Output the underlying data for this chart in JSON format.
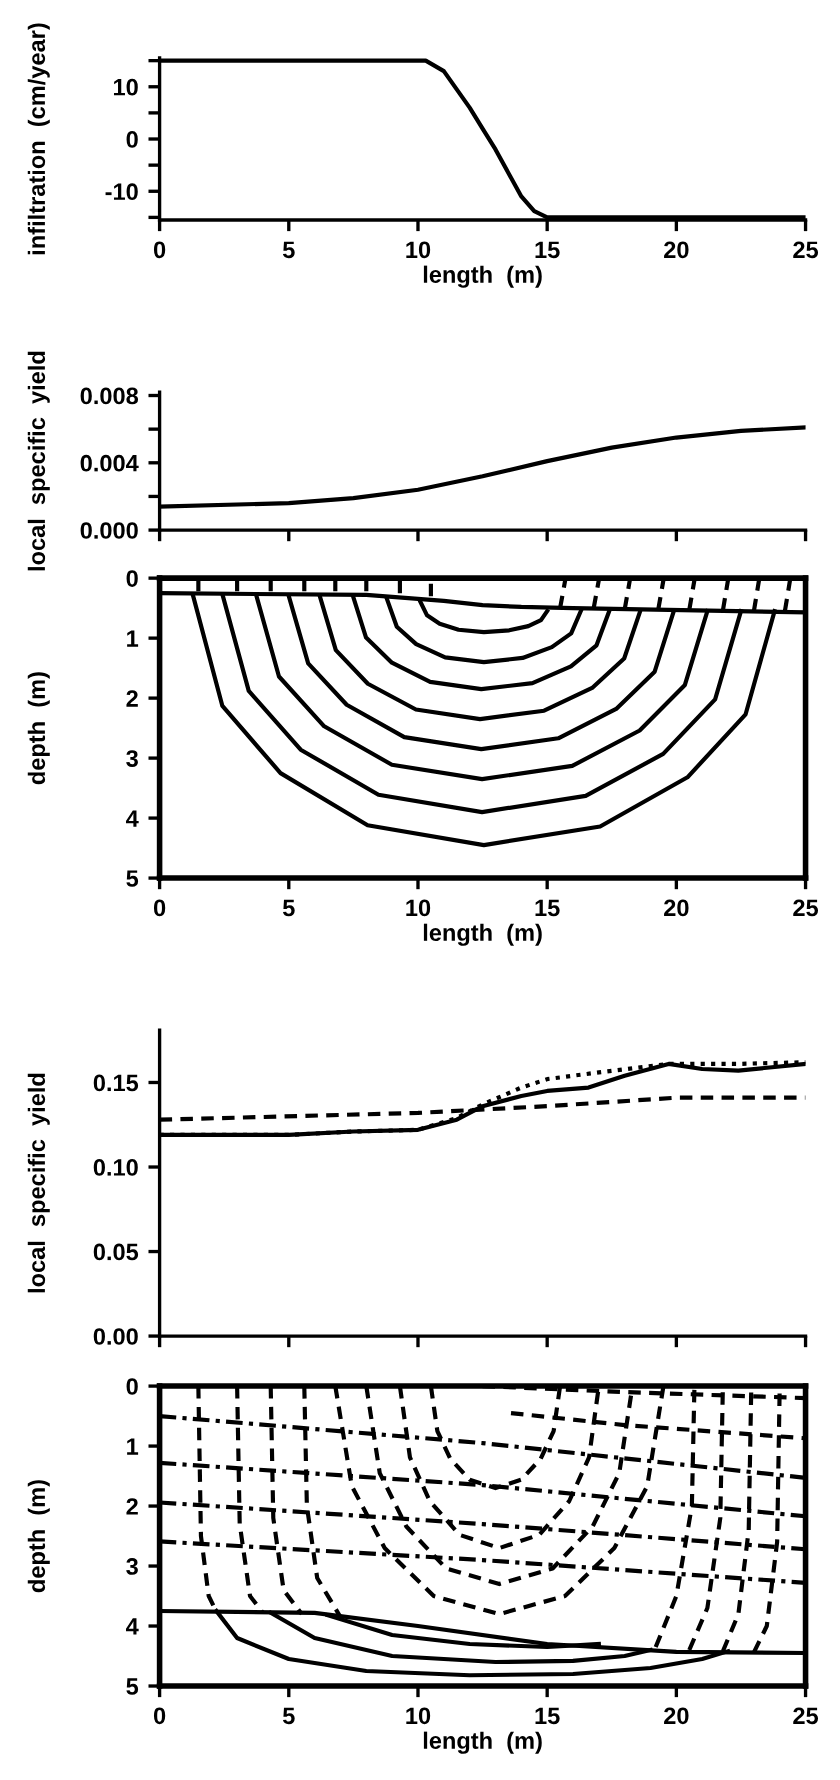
{
  "chart_data": [
    {
      "type": "line",
      "xlabel": "length  (m)",
      "ylabel": "infiltration  (cm/year)",
      "xlim": [
        0,
        25
      ],
      "xticks": [
        0,
        5,
        10,
        15,
        20,
        25
      ],
      "ylim": [
        -15.5,
        15.5
      ],
      "yticks": [
        {
          "value": -15,
          "label": null
        },
        -10,
        {
          "value": -5,
          "label": null
        },
        0,
        {
          "value": 5,
          "label": null
        },
        10,
        {
          "value": 15,
          "label": null
        }
      ],
      "series": [
        {
          "color": "#000000",
          "line_style": "solid",
          "x": [
            0,
            10.3,
            11,
            12,
            12.5,
            13,
            14,
            14.5,
            15,
            25
          ],
          "values": [
            15,
            15,
            13,
            6,
            2,
            -2,
            -11,
            -13.8,
            -15,
            -15
          ]
        }
      ]
    },
    {
      "type": "line",
      "ylabel": "local  specific  yield",
      "tick_labels": "y",
      "xlim": [
        0,
        25
      ],
      "xticks": [
        0,
        5,
        10,
        15,
        20,
        25
      ],
      "ylim": [
        0,
        0.0082
      ],
      "yticks": [
        {
          "value": 0,
          "label": "0.000"
        },
        {
          "value": 0.002,
          "label": null
        },
        {
          "value": 0.004,
          "label": "0.004"
        },
        {
          "value": 0.006,
          "label": null
        },
        {
          "value": 0.008,
          "label": "0.008"
        }
      ],
      "series": [
        {
          "color": "#000000",
          "line_style": "solid",
          "x": [
            0,
            5,
            7.5,
            10,
            12.5,
            15,
            17.5,
            20,
            22.5,
            25
          ],
          "values": [
            0.0014,
            0.0016,
            0.0019,
            0.0024,
            0.0032,
            0.0041,
            0.0049,
            0.0055,
            0.0059,
            0.0061
          ]
        }
      ]
    },
    {
      "type": "line",
      "xlabel": "length  (m)",
      "ylabel": "depth  (m)",
      "xlim": [
        0,
        25
      ],
      "xticks": [
        0,
        5,
        10,
        15,
        20,
        25
      ],
      "ylim": [
        5,
        0
      ],
      "yticks": [
        0,
        1,
        2,
        3,
        4,
        5
      ],
      "series": [
        {
          "color": "#000000",
          "line_style": "solid",
          "x": [
            0,
            8,
            11,
            12.5,
            14,
            16,
            25
          ],
          "values": [
            0.25,
            0.28,
            0.38,
            0.45,
            0.48,
            0.5,
            0.57
          ]
        },
        {
          "color": "#000000",
          "line_style": "solid",
          "x": [
            1.3,
            2.43,
            4.68,
            8.05,
            12.55,
            17.05,
            20.43,
            22.68,
            23.8
          ],
          "values": [
            0.3,
            2.13,
            3.25,
            4.12,
            4.45,
            4.14,
            3.32,
            2.27,
            0.55
          ]
        },
        {
          "color": "#000000",
          "line_style": "solid",
          "x": [
            2.45,
            3.45,
            5.46,
            8.47,
            12.48,
            16.49,
            19.49,
            21.5,
            22.5
          ],
          "values": [
            0.3,
            1.88,
            2.86,
            3.61,
            3.9,
            3.63,
            2.93,
            2.02,
            0.55
          ]
        },
        {
          "color": "#000000",
          "line_style": "solid",
          "x": [
            3.75,
            4.62,
            6.37,
            8.99,
            12.48,
            15.97,
            18.58,
            20.33,
            21.2
          ],
          "values": [
            0.3,
            1.64,
            2.47,
            3.11,
            3.35,
            3.13,
            2.54,
            1.78,
            0.55
          ]
        },
        {
          "color": "#000000",
          "line_style": "solid",
          "x": [
            5.0,
            5.75,
            7.24,
            9.47,
            12.45,
            15.43,
            17.67,
            19.16,
            19.9
          ],
          "values": [
            0.3,
            1.42,
            2.11,
            2.65,
            2.85,
            2.67,
            2.18,
            1.56,
            0.55
          ]
        },
        {
          "color": "#000000",
          "line_style": "solid",
          "x": [
            6.2,
            6.82,
            8.06,
            9.92,
            12.4,
            14.88,
            16.74,
            17.98,
            18.6
          ],
          "values": [
            0.3,
            1.2,
            1.76,
            2.19,
            2.35,
            2.21,
            1.83,
            1.34,
            0.55
          ]
        },
        {
          "color": "#000000",
          "line_style": "solid",
          "x": [
            7.5,
            7.99,
            8.99,
            10.47,
            12.45,
            14.43,
            15.92,
            16.91,
            17.4
          ],
          "values": [
            0.32,
            0.99,
            1.41,
            1.73,
            1.85,
            1.75,
            1.47,
            1.12,
            0.55
          ]
        },
        {
          "color": "#000000",
          "line_style": "solid",
          "x": [
            8.8,
            9.18,
            9.93,
            11.05,
            12.55,
            14.05,
            15.18,
            15.93,
            16.3
          ],
          "values": [
            0.35,
            0.81,
            1.1,
            1.32,
            1.4,
            1.33,
            1.15,
            0.92,
            0.55
          ]
        },
        {
          "color": "#000000",
          "line_style": "solid",
          "x": [
            10.1,
            10.35,
            10.84,
            11.57,
            12.55,
            13.53,
            14.27,
            14.76,
            15.0
          ],
          "values": [
            0.4,
            0.62,
            0.76,
            0.86,
            0.9,
            0.87,
            0.8,
            0.7,
            0.55
          ]
        },
        {
          "color": "#000000",
          "line_style": "dashed",
          "x": [
            1.5,
            1.5
          ],
          "values": [
            0.22,
            0.03
          ]
        },
        {
          "color": "#000000",
          "line_style": "dashed",
          "x": [
            3.0,
            3.0
          ],
          "values": [
            0.22,
            0.03
          ]
        },
        {
          "color": "#000000",
          "line_style": "dashed",
          "x": [
            4.3,
            4.3
          ],
          "values": [
            0.22,
            0.03
          ]
        },
        {
          "color": "#000000",
          "line_style": "dashed",
          "x": [
            5.6,
            5.6
          ],
          "values": [
            0.22,
            0.03
          ]
        },
        {
          "color": "#000000",
          "line_style": "dashed",
          "x": [
            6.8,
            6.8
          ],
          "values": [
            0.22,
            0.03
          ]
        },
        {
          "color": "#000000",
          "line_style": "dashed",
          "x": [
            8.0,
            8.0
          ],
          "values": [
            0.22,
            0.03
          ]
        },
        {
          "color": "#000000",
          "line_style": "dashed",
          "x": [
            9.3,
            9.3
          ],
          "values": [
            0.25,
            0.03
          ]
        },
        {
          "color": "#000000",
          "line_style": "dashed",
          "x": [
            10.5,
            10.5
          ],
          "values": [
            0.3,
            0.03
          ]
        },
        {
          "color": "#000000",
          "line_style": "dashed",
          "x": [
            15.5,
            15.7
          ],
          "values": [
            0.5,
            0.03
          ]
        },
        {
          "color": "#000000",
          "line_style": "dashed",
          "x": [
            16.8,
            17.0
          ],
          "values": [
            0.5,
            0.03
          ]
        },
        {
          "color": "#000000",
          "line_style": "dashed",
          "x": [
            18.0,
            18.2
          ],
          "values": [
            0.52,
            0.03
          ]
        },
        {
          "color": "#000000",
          "line_style": "dashed",
          "x": [
            19.3,
            19.5
          ],
          "values": [
            0.52,
            0.03
          ]
        },
        {
          "color": "#000000",
          "line_style": "dashed",
          "x": [
            20.5,
            20.7
          ],
          "values": [
            0.53,
            0.03
          ]
        },
        {
          "color": "#000000",
          "line_style": "dashed",
          "x": [
            21.8,
            22.0
          ],
          "values": [
            0.54,
            0.03
          ]
        },
        {
          "color": "#000000",
          "line_style": "dashed",
          "x": [
            23.0,
            23.2
          ],
          "values": [
            0.55,
            0.03
          ]
        },
        {
          "color": "#000000",
          "line_style": "dashed",
          "x": [
            24.2,
            24.4
          ],
          "values": [
            0.55,
            0.03
          ]
        }
      ]
    },
    {
      "type": "line",
      "ylabel": "local  specific  yield",
      "tick_labels": "y",
      "xlim": [
        0,
        25
      ],
      "xticks": [
        0,
        5,
        10,
        15,
        20,
        25
      ],
      "ylim": [
        0,
        0.181
      ],
      "yticks": [
        {
          "value": 0,
          "label": "0.00"
        },
        {
          "value": 0.05,
          "label": "0.05"
        },
        {
          "value": 0.1,
          "label": "0.10"
        },
        {
          "value": 0.15,
          "label": "0.15"
        }
      ],
      "series": [
        {
          "color": "#000000",
          "line_style": "solid",
          "x": [
            0,
            5,
            7.5,
            10,
            11.5,
            12.5,
            14,
            15,
            16.6,
            18,
            19.7,
            21,
            22.4,
            25
          ],
          "values": [
            0.119,
            0.119,
            0.121,
            0.122,
            0.128,
            0.136,
            0.142,
            0.145,
            0.147,
            0.154,
            0.161,
            0.158,
            0.157,
            0.161
          ]
        },
        {
          "color": "#000000",
          "line_style": "dotted",
          "x": [
            0,
            5,
            7.5,
            10,
            11.5,
            12.5,
            14,
            15,
            17,
            19.7,
            22.4,
            25
          ],
          "values": [
            0.119,
            0.119,
            0.121,
            0.122,
            0.129,
            0.137,
            0.147,
            0.152,
            0.156,
            0.161,
            0.161,
            0.162
          ]
        },
        {
          "color": "#000000",
          "line_style": "dashed",
          "x": [
            0,
            10,
            15,
            20,
            25
          ],
          "values": [
            0.128,
            0.132,
            0.136,
            0.141,
            0.141
          ]
        }
      ]
    },
    {
      "type": "line",
      "xlabel": "length  (m)",
      "ylabel": "depth  (m)",
      "xlim": [
        0,
        25
      ],
      "xticks": [
        0,
        5,
        10,
        15,
        20,
        25
      ],
      "ylim": [
        5,
        0
      ],
      "yticks": [
        0,
        1,
        2,
        3,
        4,
        5
      ],
      "series": [
        {
          "color": "#000000",
          "line_style": "dashed",
          "x": [
            10.5,
            10.75,
            11.25,
            12.0,
            13.0,
            14.0,
            14.75,
            15.25,
            15.5
          ],
          "values": [
            0,
            0.75,
            1.21,
            1.56,
            1.7,
            1.56,
            1.21,
            0.75,
            0
          ]
        },
        {
          "color": "#000000",
          "line_style": "dashed",
          "x": [
            9.3,
            9.69,
            10.46,
            11.61,
            13.15,
            14.69,
            15.85,
            16.62,
            17.0
          ],
          "values": [
            0,
            1.19,
            1.92,
            2.48,
            2.7,
            2.48,
            1.92,
            1.19,
            0
          ]
        },
        {
          "color": "#000000",
          "line_style": "dashed",
          "x": [
            8.0,
            8.52,
            9.55,
            11.09,
            13.15,
            15.21,
            16.76,
            17.79,
            18.3
          ],
          "values": [
            0,
            1.45,
            2.34,
            3.04,
            3.3,
            3.04,
            2.34,
            1.45,
            0
          ]
        },
        {
          "color": "#000000",
          "line_style": "dashed",
          "x": [
            6.8,
            7.44,
            8.71,
            10.61,
            13.15,
            15.69,
            17.6,
            18.87,
            19.5
          ],
          "values": [
            0,
            1.67,
            2.7,
            3.5,
            3.8,
            3.5,
            2.7,
            1.67,
            0
          ]
        },
        {
          "color": "#000000",
          "line_style": "dashed",
          "x": [
            5.6,
            5.7,
            6.1,
            7.0
          ],
          "values": [
            0,
            2.0,
            3.2,
            3.85
          ]
        },
        {
          "color": "#000000",
          "line_style": "dashed",
          "x": [
            19.2,
            20.0,
            20.6,
            20.7
          ],
          "values": [
            4.35,
            3.5,
            2.0,
            0
          ]
        },
        {
          "color": "#000000",
          "line_style": "dashed",
          "x": [
            4.3,
            4.4,
            4.8,
            5.5
          ],
          "values": [
            0,
            2.2,
            3.4,
            3.8
          ]
        },
        {
          "color": "#000000",
          "line_style": "dashed",
          "x": [
            20.5,
            21.2,
            21.7,
            21.8
          ],
          "values": [
            4.4,
            3.7,
            2.2,
            0
          ]
        },
        {
          "color": "#000000",
          "line_style": "dashed",
          "x": [
            3.0,
            3.1,
            3.5,
            4.0
          ],
          "values": [
            0,
            2.3,
            3.5,
            3.78
          ]
        },
        {
          "color": "#000000",
          "line_style": "dashed",
          "x": [
            21.8,
            22.4,
            22.8,
            22.9
          ],
          "values": [
            4.42,
            3.8,
            2.4,
            0
          ]
        },
        {
          "color": "#000000",
          "line_style": "dashed",
          "x": [
            1.5,
            1.6,
            1.9,
            2.2
          ],
          "values": [
            0,
            2.5,
            3.5,
            3.76
          ]
        },
        {
          "color": "#000000",
          "line_style": "dashed",
          "x": [
            23.0,
            23.5,
            23.9,
            24.0
          ],
          "values": [
            4.44,
            4.0,
            2.6,
            0
          ]
        },
        {
          "color": "#000000",
          "line_style": "dashed",
          "x": [
            12.5,
            18,
            25
          ],
          "values": [
            0,
            0.1,
            0.2
          ]
        },
        {
          "color": "#000000",
          "line_style": "dashed",
          "x": [
            13.6,
            18,
            25
          ],
          "values": [
            0.45,
            0.65,
            0.87
          ]
        },
        {
          "color": "#000000",
          "line_style": "dashdot",
          "x": [
            0,
            12.5,
            25
          ],
          "values": [
            0.5,
            0.95,
            1.53
          ]
        },
        {
          "color": "#000000",
          "line_style": "dashdot",
          "x": [
            0,
            12.5,
            25
          ],
          "values": [
            1.28,
            1.65,
            2.17
          ]
        },
        {
          "color": "#000000",
          "line_style": "dashdot",
          "x": [
            0,
            12.5,
            25
          ],
          "values": [
            1.94,
            2.3,
            2.72
          ]
        },
        {
          "color": "#000000",
          "line_style": "dashdot",
          "x": [
            0,
            12.5,
            25
          ],
          "values": [
            2.59,
            2.9,
            3.28
          ]
        },
        {
          "color": "#000000",
          "line_style": "solid",
          "x": [
            0,
            6,
            10,
            15,
            20,
            25
          ],
          "values": [
            3.75,
            3.78,
            4.0,
            4.3,
            4.43,
            4.45
          ]
        },
        {
          "color": "#000000",
          "line_style": "solid",
          "x": [
            2.2,
            3,
            5,
            8,
            12,
            16,
            19,
            21,
            22
          ],
          "values": [
            3.75,
            4.2,
            4.55,
            4.75,
            4.82,
            4.8,
            4.7,
            4.55,
            4.42
          ]
        },
        {
          "color": "#000000",
          "line_style": "solid",
          "x": [
            4.3,
            6,
            9,
            13,
            16,
            18,
            19
          ],
          "values": [
            3.78,
            4.2,
            4.5,
            4.6,
            4.58,
            4.5,
            4.4
          ]
        },
        {
          "color": "#000000",
          "line_style": "solid",
          "x": [
            6.5,
            9,
            12,
            15,
            17
          ],
          "values": [
            3.82,
            4.15,
            4.3,
            4.35,
            4.3
          ]
        }
      ]
    }
  ]
}
